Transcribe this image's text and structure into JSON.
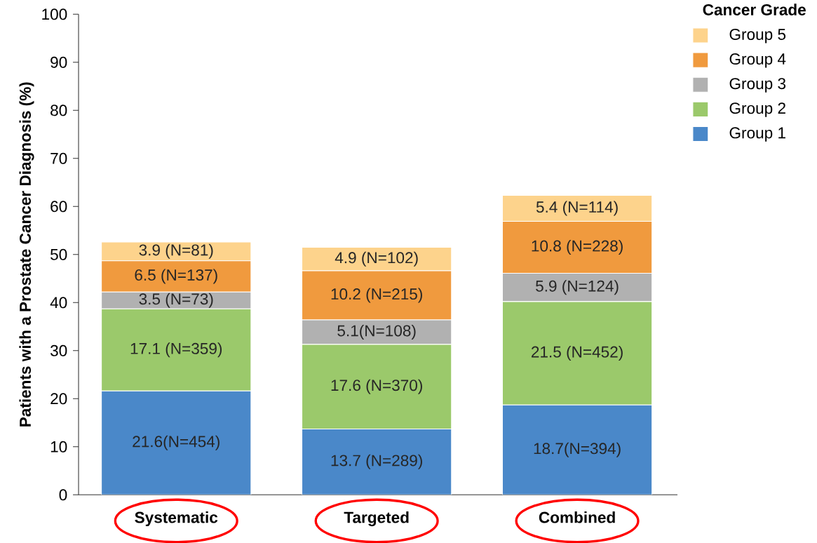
{
  "chart_data": {
    "type": "bar",
    "stacked": true,
    "ylabel": "Patients with a Prostate Cancer Diagnosis (%)",
    "legend_title": "Cancer Grade",
    "legend": "top right",
    "categories": [
      "Systematic",
      "Targeted",
      "Combined"
    ],
    "ylim": [
      0,
      100
    ],
    "yticks": [
      0,
      10,
      20,
      30,
      40,
      50,
      60,
      70,
      80,
      90,
      100
    ],
    "series": [
      {
        "name": "Group 1",
        "color": "#4a88c9",
        "values": [
          21.6,
          13.7,
          18.7
        ],
        "value_labels": [
          "21.6(N=454)",
          "13.7 (N=289)",
          "18.7(N=394)"
        ]
      },
      {
        "name": "Group 2",
        "color": "#9bc96b",
        "values": [
          17.1,
          17.6,
          21.5
        ],
        "value_labels": [
          "17.1 (N=359)",
          "17.6 (N=370)",
          "21.5 (N=452)"
        ]
      },
      {
        "name": "Group 3",
        "color": "#b1b1b1",
        "values": [
          3.5,
          5.1,
          5.9
        ],
        "value_labels": [
          "3.5 (N=73)",
          "5.1(N=108)",
          "5.9 (N=124)"
        ]
      },
      {
        "name": "Group 4",
        "color": "#f09a3e",
        "values": [
          6.5,
          10.2,
          10.8
        ],
        "value_labels": [
          "6.5 (N=137)",
          "10.2 (N=215)",
          "10.8 (N=228)"
        ]
      },
      {
        "name": "Group 5",
        "color": "#fdd38c",
        "values": [
          3.9,
          4.9,
          5.4
        ],
        "value_labels": [
          "3.9 (N=81)",
          "4.9 (N=102)",
          "5.4 (N=114)"
        ]
      }
    ]
  }
}
